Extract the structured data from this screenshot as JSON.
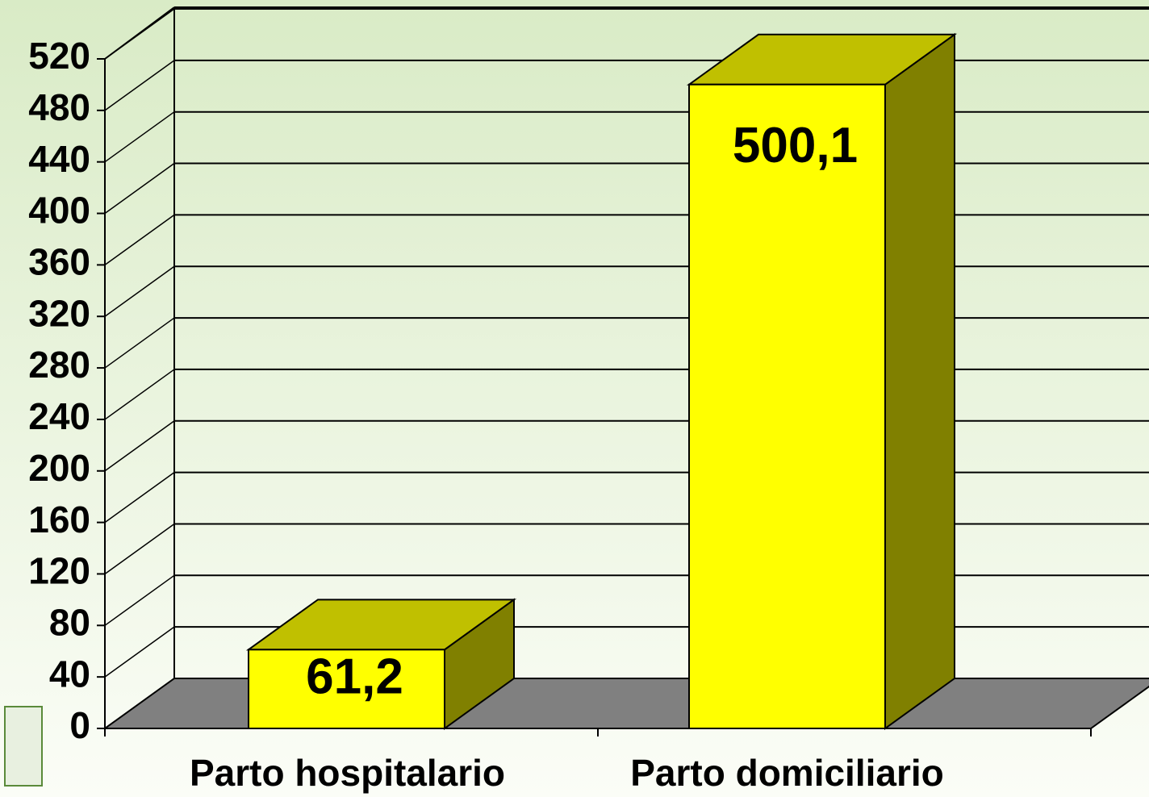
{
  "chart_data": {
    "type": "bar3d",
    "categories": [
      "Parto hospitalario",
      "Parto domiciliario"
    ],
    "values": [
      61.2,
      500.1
    ],
    "value_labels": [
      "61,2",
      "500,1"
    ],
    "color": "#ffff00",
    "ylim": [
      0,
      520
    ],
    "yticks": [
      0,
      40,
      80,
      120,
      160,
      200,
      240,
      280,
      320,
      360,
      400,
      440,
      480,
      520
    ],
    "grid": true
  }
}
